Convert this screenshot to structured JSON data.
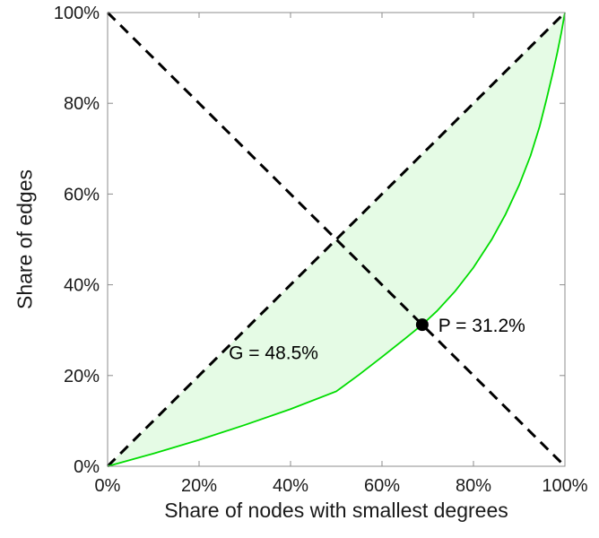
{
  "chart_data": {
    "type": "line",
    "title": "",
    "xlabel": "Share of nodes with smallest degrees",
    "ylabel": "Share of edges",
    "xlim": [
      0,
      100
    ],
    "ylim": [
      0,
      100
    ],
    "xticks": [
      0,
      20,
      40,
      60,
      80,
      100
    ],
    "yticks": [
      0,
      20,
      40,
      60,
      80,
      100
    ],
    "xtick_labels": [
      "0%",
      "20%",
      "40%",
      "60%",
      "80%",
      "100%"
    ],
    "ytick_labels": [
      "0%",
      "20%",
      "40%",
      "60%",
      "80%",
      "100%"
    ],
    "grid": false,
    "legend": "none",
    "axis_color": "#8c8c8c",
    "tick_label_color": "#1a1a1a",
    "series": [
      {
        "name": "lorenz-curve",
        "color": "#00dc00",
        "width": 1.8,
        "dash": null,
        "fill_between_diagonal": true,
        "fill_color": "#00dc00",
        "fill_opacity": 0.1,
        "points": [
          [
            0,
            0
          ],
          [
            10,
            2.8
          ],
          [
            20,
            5.8
          ],
          [
            30,
            9.1
          ],
          [
            40,
            12.6
          ],
          [
            50,
            16.5
          ],
          [
            55,
            20.2
          ],
          [
            60,
            24.1
          ],
          [
            65,
            28.1
          ],
          [
            68.8,
            31.2
          ],
          [
            72,
            34.2
          ],
          [
            76,
            38.6
          ],
          [
            80,
            43.8
          ],
          [
            84,
            50.0
          ],
          [
            87,
            55.5
          ],
          [
            90,
            62.0
          ],
          [
            92.5,
            68.5
          ],
          [
            94.5,
            75.0
          ],
          [
            96,
            81.0
          ],
          [
            97.3,
            86.5
          ],
          [
            98.3,
            91.0
          ],
          [
            99.2,
            95.5
          ],
          [
            100,
            100
          ]
        ]
      },
      {
        "name": "equality-diagonal",
        "color": "#000000",
        "width": 3,
        "dash": [
          12,
          8
        ],
        "fill_between_diagonal": false,
        "points": [
          [
            0,
            0
          ],
          [
            100,
            100
          ]
        ]
      },
      {
        "name": "anti-diagonal",
        "color": "#000000",
        "width": 3,
        "dash": [
          12,
          8
        ],
        "fill_between_diagonal": false,
        "points": [
          [
            0,
            100
          ],
          [
            100,
            0
          ]
        ]
      }
    ],
    "annotations": [
      {
        "name": "p-point",
        "type": "point",
        "x": 68.8,
        "y": 31.2,
        "color": "#000000",
        "radius": 7
      },
      {
        "name": "p-label",
        "type": "text",
        "x": 72.3,
        "y": 29.6,
        "text": "P = 31.2%",
        "align": "start",
        "color": "#000000",
        "size": 21
      },
      {
        "name": "g-label",
        "type": "text",
        "x": 26.5,
        "y": 23.6,
        "text": "G = 48.5%",
        "align": "start",
        "color": "#000000",
        "size": 21
      }
    ],
    "stats": {
      "gini_coefficient_pct": 48.5,
      "p_intersection_pct": 31.2,
      "p_intersection_x_pct": 68.8
    }
  }
}
